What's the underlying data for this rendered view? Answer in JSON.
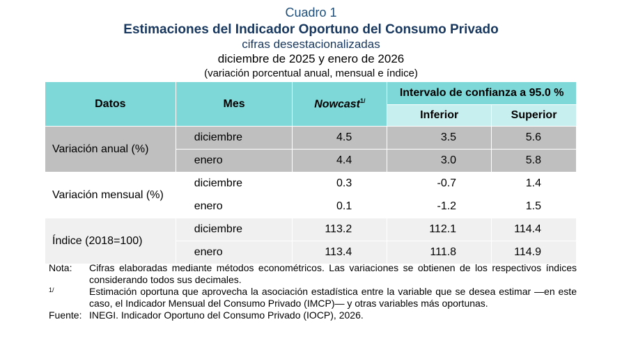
{
  "header": {
    "label": "Cuadro 1",
    "title": "Estimaciones del Indicador Oportuno del Consumo Privado",
    "subtitle": "cifras desestacionalizadas",
    "period": "diciembre de 2025 y enero de 2026",
    "units": "(variación porcentual anual, mensual e índice)"
  },
  "table": {
    "columns": {
      "datos": "Datos",
      "mes": "Mes",
      "nowcast": "Nowcast",
      "nowcast_note": "1/",
      "interval": "Intervalo de confianza a 95.0 %",
      "lower": "Inferior",
      "upper": "Superior"
    },
    "rows": [
      {
        "group": "Variación anual (%)",
        "months": [
          {
            "mes": "diciembre",
            "values": [
              "4.5",
              "3.5",
              "5.6"
            ]
          },
          {
            "mes": "enero",
            "values": [
              "4.4",
              "3.0",
              "5.8"
            ]
          }
        ]
      },
      {
        "group": "Variación mensual (%)",
        "months": [
          {
            "mes": "diciembre",
            "values": [
              "0.3",
              "-0.7",
              "1.4"
            ]
          },
          {
            "mes": "enero",
            "values": [
              "0.1",
              "-1.2",
              "1.5"
            ]
          }
        ]
      },
      {
        "group": "Índice (2018=100)",
        "months": [
          {
            "mes": "diciembre",
            "values": [
              "113.2",
              "112.1",
              "114.4"
            ]
          },
          {
            "mes": "enero",
            "values": [
              "113.4",
              "111.8",
              "114.9"
            ]
          }
        ]
      }
    ]
  },
  "notes": [
    {
      "label": "Nota:",
      "text": "Cifras elaboradas mediante métodos econométricos. Las variaciones se obtienen de los respectivos índices considerando todos sus decimales."
    },
    {
      "label": "1/",
      "text": "Estimación oportuna que aprovecha la asociación estadística entre la variable que se desea estimar —en este caso, el Indicador Mensual del Consumo Privado (IMCP)— y otras variables más oportunas."
    },
    {
      "label": "Fuente:",
      "text": "INEGI. Indicador Oportuno del Consumo Privado (IOCP), 2026."
    }
  ]
}
